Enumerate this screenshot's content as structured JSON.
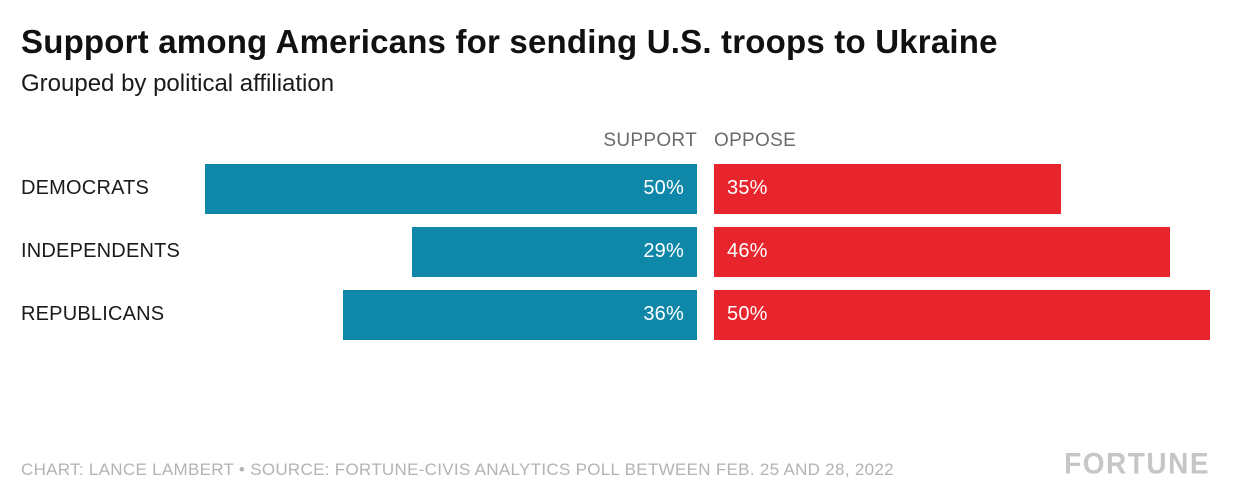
{
  "title": "Support among Americans for sending U.S. troops to Ukraine",
  "subtitle": "Grouped by political affiliation",
  "columns": {
    "support": "SUPPORT",
    "oppose": "OPPOSE"
  },
  "rows": [
    {
      "label": "DEMOCRATS",
      "support": 50,
      "oppose": 35,
      "support_label": "50%",
      "oppose_label": "35%"
    },
    {
      "label": "INDEPENDENTS",
      "support": 29,
      "oppose": 46,
      "support_label": "29%",
      "oppose_label": "46%"
    },
    {
      "label": "REPUBLICANS",
      "support": 36,
      "oppose": 50,
      "support_label": "36%",
      "oppose_label": "50%"
    }
  ],
  "colors": {
    "support": "#0E87A8",
    "oppose": "#E8242C"
  },
  "footer": {
    "credit": "CHART: LANCE LAMBERT • SOURCE: FORTUNE-CIVIS ANALYTICS POLL BETWEEN FEB. 25 AND 28, 2022",
    "brand": "FORTUNE"
  },
  "chart_data": {
    "type": "bar",
    "orientation": "horizontal-diverging",
    "title": "Support among Americans for sending U.S. troops to Ukraine",
    "subtitle": "Grouped by political affiliation",
    "categories": [
      "Democrats",
      "Independents",
      "Republicans"
    ],
    "series": [
      {
        "name": "Support",
        "values": [
          50,
          29,
          36
        ],
        "color": "#0E87A8"
      },
      {
        "name": "Oppose",
        "values": [
          35,
          46,
          50
        ],
        "color": "#E8242C"
      }
    ],
    "value_format": "percent",
    "xlim": [
      0,
      50
    ],
    "grid": false,
    "legend_position": "top-as-column-headers",
    "layout": "support bars extend left from center gap, oppose bars extend right; value labels inside bar ends nearest center"
  }
}
